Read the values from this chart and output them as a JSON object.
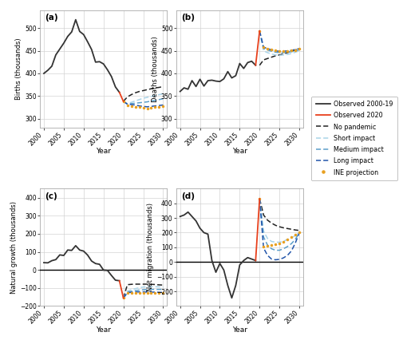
{
  "background": "#ffffff",
  "grid_color": "#d3d3d3",
  "births_obs": {
    "x": [
      2000,
      2001,
      2002,
      2003,
      2004,
      2005,
      2006,
      2007,
      2008,
      2009,
      2010,
      2011,
      2012,
      2013,
      2014,
      2015,
      2016,
      2017,
      2018,
      2019
    ],
    "y": [
      400,
      407,
      416,
      441,
      454,
      467,
      482,
      492,
      519,
      493,
      486,
      470,
      453,
      425,
      426,
      421,
      408,
      393,
      370,
      358
    ]
  },
  "births_obs2020": {
    "x": [
      2019,
      2020
    ],
    "y": [
      358,
      338
    ]
  },
  "births_no_pandemic": {
    "x": [
      2020,
      2021,
      2022,
      2023,
      2024,
      2025,
      2026,
      2027,
      2028,
      2029,
      2030
    ],
    "y": [
      338,
      348,
      353,
      357,
      360,
      362,
      364,
      366,
      368,
      369,
      371
    ]
  },
  "births_short": {
    "x": [
      2020,
      2021,
      2022,
      2023,
      2024,
      2025,
      2026,
      2027,
      2028,
      2029,
      2030
    ],
    "y": [
      338,
      333,
      336,
      339,
      342,
      345,
      347,
      349,
      351,
      353,
      355
    ]
  },
  "births_medium": {
    "x": [
      2020,
      2021,
      2022,
      2023,
      2024,
      2025,
      2026,
      2027,
      2028,
      2029,
      2030
    ],
    "y": [
      338,
      332,
      333,
      334,
      335,
      336,
      337,
      339,
      340,
      342,
      344
    ]
  },
  "births_long": {
    "x": [
      2020,
      2021,
      2022,
      2023,
      2024,
      2025,
      2026,
      2027,
      2028,
      2029,
      2030
    ],
    "y": [
      338,
      332,
      331,
      330,
      328,
      327,
      326,
      327,
      328,
      329,
      330
    ]
  },
  "births_ine": {
    "x": [
      2020,
      2021,
      2022,
      2023,
      2024,
      2025,
      2026,
      2027,
      2028,
      2029,
      2030
    ],
    "y": [
      338,
      330,
      328,
      326,
      325,
      324,
      323,
      324,
      325,
      326,
      327
    ]
  },
  "deaths_obs": {
    "x": [
      2000,
      2001,
      2002,
      2003,
      2004,
      2005,
      2006,
      2007,
      2008,
      2009,
      2010,
      2011,
      2012,
      2013,
      2014,
      2015,
      2016,
      2017,
      2018,
      2019
    ],
    "y": [
      360,
      368,
      365,
      384,
      371,
      387,
      372,
      384,
      385,
      383,
      382,
      388,
      404,
      390,
      395,
      422,
      411,
      424,
      427,
      418
    ]
  },
  "deaths_obs2020": {
    "x": [
      2019,
      2020
    ],
    "y": [
      418,
      494
    ]
  },
  "deaths_no_pandemic": {
    "x": [
      2020,
      2021,
      2022,
      2023,
      2024,
      2025,
      2026,
      2027,
      2028,
      2029,
      2030
    ],
    "y": [
      418,
      430,
      433,
      436,
      439,
      441,
      443,
      446,
      449,
      452,
      455
    ]
  },
  "deaths_short": {
    "x": [
      2020,
      2021,
      2022,
      2023,
      2024,
      2025,
      2026,
      2027,
      2028,
      2029,
      2030
    ],
    "y": [
      494,
      450,
      446,
      443,
      441,
      440,
      441,
      442,
      444,
      447,
      450
    ]
  },
  "deaths_medium": {
    "x": [
      2020,
      2021,
      2022,
      2023,
      2024,
      2025,
      2026,
      2027,
      2028,
      2029,
      2030
    ],
    "y": [
      494,
      455,
      452,
      449,
      447,
      446,
      446,
      447,
      448,
      450,
      452
    ]
  },
  "deaths_long": {
    "x": [
      2020,
      2021,
      2022,
      2023,
      2024,
      2025,
      2026,
      2027,
      2028,
      2029,
      2030
    ],
    "y": [
      494,
      458,
      455,
      452,
      450,
      449,
      449,
      450,
      451,
      453,
      455
    ]
  },
  "deaths_ine": {
    "x": [
      2020,
      2021,
      2022,
      2023,
      2024,
      2025,
      2026,
      2027,
      2028,
      2029,
      2030
    ],
    "y": [
      494,
      458,
      455,
      453,
      451,
      450,
      449,
      450,
      451,
      452,
      454
    ]
  },
  "natgrowth_obs": {
    "x": [
      2000,
      2001,
      2002,
      2003,
      2004,
      2005,
      2006,
      2007,
      2008,
      2009,
      2010,
      2011,
      2012,
      2013,
      2014,
      2015,
      2016,
      2017,
      2018,
      2019
    ],
    "y": [
      40,
      39,
      51,
      57,
      83,
      80,
      110,
      108,
      134,
      110,
      104,
      82,
      49,
      35,
      31,
      -1,
      -3,
      -31,
      -57,
      -60
    ]
  },
  "natgrowth_obs2020": {
    "x": [
      2019,
      2020
    ],
    "y": [
      -60,
      -156
    ]
  },
  "natgrowth_no_pandemic": {
    "x": [
      2020,
      2021,
      2022,
      2023,
      2024,
      2025,
      2026,
      2027,
      2028,
      2029,
      2030
    ],
    "y": [
      -156,
      -82,
      -80,
      -79,
      -79,
      -79,
      -79,
      -80,
      -81,
      -83,
      -84
    ]
  },
  "natgrowth_short": {
    "x": [
      2020,
      2021,
      2022,
      2023,
      2024,
      2025,
      2026,
      2027,
      2028,
      2029,
      2030
    ],
    "y": [
      -156,
      -117,
      -110,
      -104,
      -99,
      -95,
      -94,
      -93,
      -93,
      -94,
      -95
    ]
  },
  "natgrowth_medium": {
    "x": [
      2020,
      2021,
      2022,
      2023,
      2024,
      2025,
      2026,
      2027,
      2028,
      2029,
      2030
    ],
    "y": [
      -156,
      -123,
      -119,
      -115,
      -112,
      -110,
      -109,
      -108,
      -108,
      -108,
      -108
    ]
  },
  "natgrowth_long": {
    "x": [
      2020,
      2021,
      2022,
      2023,
      2024,
      2025,
      2026,
      2027,
      2028,
      2029,
      2030
    ],
    "y": [
      -156,
      -126,
      -124,
      -122,
      -122,
      -122,
      -123,
      -123,
      -123,
      -124,
      -125
    ]
  },
  "natgrowth_ine": {
    "x": [
      2020,
      2021,
      2022,
      2023,
      2024,
      2025,
      2026,
      2027,
      2028,
      2029,
      2030
    ],
    "y": [
      -156,
      -128,
      -127,
      -127,
      -126,
      -126,
      -126,
      -126,
      -126,
      -126,
      -127
    ]
  },
  "netmig_obs": {
    "x": [
      2000,
      2001,
      2002,
      2003,
      2004,
      2005,
      2006,
      2007,
      2008,
      2009,
      2010,
      2011,
      2012,
      2013,
      2014,
      2015,
      2016,
      2017,
      2018,
      2019
    ],
    "y": [
      310,
      320,
      340,
      310,
      280,
      230,
      200,
      190,
      10,
      -70,
      -10,
      -55,
      -160,
      -245,
      -160,
      -20,
      10,
      30,
      20,
      10
    ]
  },
  "netmig_obs2020": {
    "x": [
      2019,
      2020
    ],
    "y": [
      10,
      430
    ]
  },
  "netmig_no_pandemic": {
    "x": [
      2020,
      2021,
      2022,
      2023,
      2024,
      2025,
      2026,
      2027,
      2028,
      2029,
      2030
    ],
    "y": [
      430,
      320,
      285,
      265,
      250,
      240,
      233,
      228,
      223,
      218,
      215
    ]
  },
  "netmig_short": {
    "x": [
      2020,
      2021,
      2022,
      2023,
      2024,
      2025,
      2026,
      2027,
      2028,
      2029,
      2030
    ],
    "y": [
      430,
      210,
      160,
      140,
      135,
      135,
      140,
      155,
      165,
      180,
      200
    ]
  },
  "netmig_medium": {
    "x": [
      2020,
      2021,
      2022,
      2023,
      2024,
      2025,
      2026,
      2027,
      2028,
      2029,
      2030
    ],
    "y": [
      430,
      170,
      115,
      90,
      80,
      80,
      90,
      105,
      125,
      155,
      200
    ]
  },
  "netmig_long": {
    "x": [
      2020,
      2021,
      2022,
      2023,
      2024,
      2025,
      2026,
      2027,
      2028,
      2029,
      2030
    ],
    "y": [
      430,
      95,
      45,
      20,
      15,
      18,
      28,
      45,
      75,
      130,
      200
    ]
  },
  "netmig_ine": {
    "x": [
      2020,
      2021,
      2022,
      2023,
      2024,
      2025,
      2026,
      2027,
      2028,
      2029,
      2030
    ],
    "y": [
      430,
      105,
      110,
      115,
      120,
      128,
      138,
      152,
      168,
      184,
      200
    ]
  },
  "color_obs": "#333333",
  "color_obs2020": "#e8401c",
  "color_no_pandemic": "#222222",
  "color_short": "#aad4e8",
  "color_medium": "#5b9ec9",
  "color_long": "#2255aa",
  "color_ine": "#e8a020",
  "ylim_births": [
    280,
    540
  ],
  "ylim_deaths": [
    280,
    540
  ],
  "ylim_natgrowth": [
    -200,
    450
  ],
  "ylim_netmig": [
    -300,
    500
  ],
  "yticks_births": [
    300,
    350,
    400,
    450,
    500
  ],
  "yticks_deaths": [
    300,
    350,
    400,
    450,
    500
  ],
  "yticks_natgrowth": [
    -200,
    -100,
    0,
    100,
    200,
    300,
    400
  ],
  "yticks_netmig": [
    -200,
    -100,
    0,
    100,
    200,
    300,
    400
  ],
  "xlim": [
    1999,
    2031
  ],
  "xticks": [
    2000,
    2005,
    2010,
    2015,
    2020,
    2025,
    2030
  ]
}
